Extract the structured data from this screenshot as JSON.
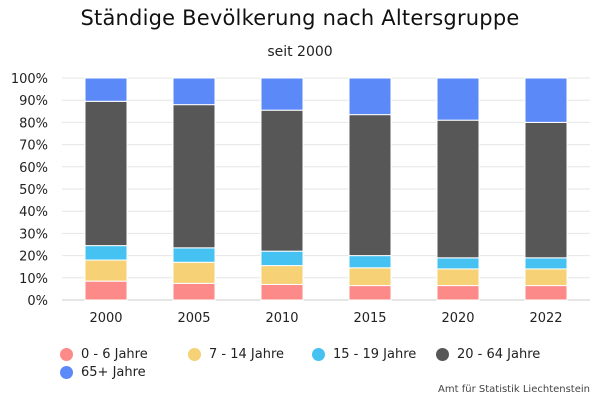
{
  "chart_data": {
    "type": "bar",
    "stacked": true,
    "title": "Ständige Bevölkerung nach Altersgruppe",
    "subtitle": "seit 2000",
    "categories": [
      "2000",
      "2005",
      "2010",
      "2015",
      "2020",
      "2022"
    ],
    "ylim": [
      0,
      100
    ],
    "yticks": [
      "0%",
      "10%",
      "20%",
      "30%",
      "40%",
      "50%",
      "60%",
      "70%",
      "80%",
      "90%",
      "100%"
    ],
    "grid": true,
    "legend_position": "bottom-left",
    "series": [
      {
        "name": "0 - 6 Jahre",
        "color": "#fc8a89",
        "values": [
          8.5,
          7.5,
          7.0,
          6.5,
          6.5,
          6.5
        ]
      },
      {
        "name": "7 - 14 Jahre",
        "color": "#f6d175",
        "values": [
          9.5,
          9.5,
          8.5,
          8.0,
          7.5,
          7.5
        ]
      },
      {
        "name": "15 - 19 Jahre",
        "color": "#45c2f2",
        "values": [
          6.5,
          6.5,
          6.5,
          5.5,
          5.0,
          5.0
        ]
      },
      {
        "name": "20 - 64 Jahre",
        "color": "#575757",
        "values": [
          65.0,
          64.5,
          63.5,
          63.5,
          62.0,
          61.0
        ]
      },
      {
        "name": "65+ Jahre",
        "color": "#5b8af8",
        "values": [
          10.5,
          12.0,
          14.5,
          16.5,
          19.0,
          20.0
        ]
      }
    ]
  },
  "source": "Amt für Statistik Liechtenstein"
}
